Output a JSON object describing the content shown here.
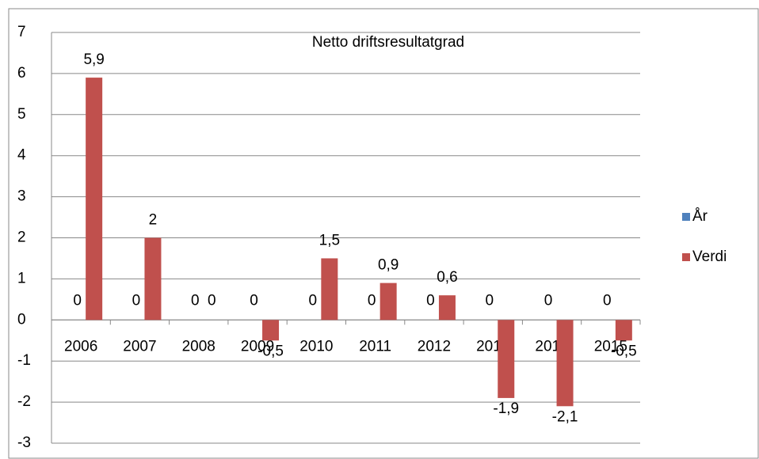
{
  "chart_data": {
    "type": "bar",
    "title": "Netto driftsresultatgrad",
    "categories": [
      "2006",
      "2007",
      "2008",
      "2009",
      "2010",
      "2011",
      "2012",
      "2013",
      "2014",
      "2015"
    ],
    "series": [
      {
        "name": "År",
        "color": "#4f81bd",
        "values": [
          0,
          0,
          0,
          0,
          0,
          0,
          0,
          0,
          0,
          0
        ]
      },
      {
        "name": "Verdi",
        "color": "#c0504d",
        "values": [
          5.9,
          2,
          0,
          -0.5,
          1.5,
          0.9,
          0.6,
          -1.9,
          -2.1,
          -0.5
        ],
        "value_labels": [
          "5,9",
          "2",
          "0",
          "-0,5",
          "1,5",
          "0,9",
          "0,6",
          "-1,9",
          "-2,1",
          "-0,5"
        ]
      }
    ],
    "ylim": [
      -3,
      7
    ],
    "yticks": [
      -3,
      -2,
      -1,
      0,
      1,
      2,
      3,
      4,
      5,
      6,
      7
    ],
    "grid": true,
    "legend": "right"
  }
}
